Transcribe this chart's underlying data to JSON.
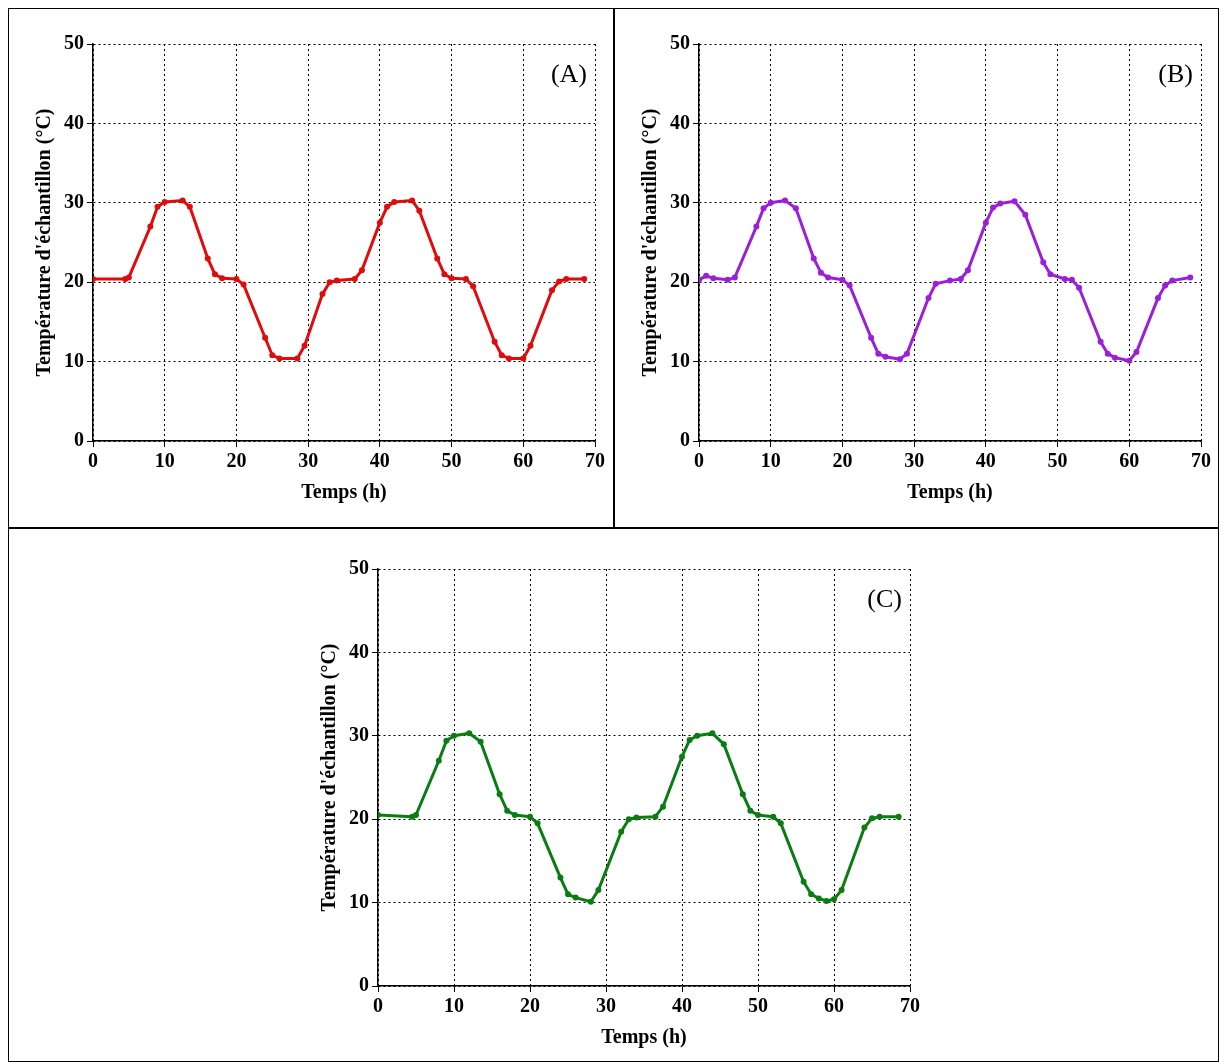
{
  "chart_data": [
    {
      "type": "line",
      "xlabel": "Temps (h)",
      "ylabel": "Température d'échantillon (°C)",
      "annotations": [
        "(A)"
      ],
      "xlim": [
        0,
        70
      ],
      "xticks": [
        0,
        10,
        20,
        30,
        40,
        50,
        60,
        70
      ],
      "ylim": [
        0,
        50
      ],
      "yticks": [
        0,
        10,
        20,
        30,
        40,
        50
      ],
      "grid": true,
      "legend": false,
      "marker": "circle",
      "x": [
        0,
        4.5,
        5,
        8,
        9,
        10,
        12.5,
        13.5,
        16,
        17,
        18,
        20,
        21,
        24,
        25,
        26,
        28.5,
        29.5,
        32,
        33,
        34,
        36.5,
        37.5,
        40,
        41,
        42,
        44.5,
        45.5,
        48,
        49,
        50,
        52,
        53,
        56,
        57,
        58,
        60,
        61,
        64,
        65,
        66,
        68.5
      ],
      "series": [
        {
          "color": "#e00c0c",
          "values": [
            20.4,
            20.4,
            20.6,
            27,
            29.5,
            30.1,
            30.3,
            29.5,
            23,
            21,
            20.5,
            20.4,
            19.7,
            13,
            10.8,
            10.4,
            10.4,
            12,
            18.5,
            20,
            20.2,
            20.4,
            21.5,
            27.5,
            29.5,
            30.1,
            30.3,
            29,
            23,
            21,
            20.5,
            20.4,
            19.5,
            12.5,
            10.8,
            10.4,
            10.4,
            12,
            19,
            20.1,
            20.4,
            20.4
          ]
        }
      ]
    },
    {
      "type": "line",
      "xlabel": "Temps (h)",
      "ylabel": "Température d'échantillon (°C)",
      "annotations": [
        "(B)"
      ],
      "xlim": [
        0,
        70
      ],
      "xticks": [
        0,
        10,
        20,
        30,
        40,
        50,
        60,
        70
      ],
      "ylim": [
        0,
        50
      ],
      "yticks": [
        0,
        10,
        20,
        30,
        40,
        50
      ],
      "grid": true,
      "legend": false,
      "marker": "circle",
      "x": [
        0,
        1,
        2,
        4,
        5,
        8,
        9,
        10,
        12,
        13.5,
        16,
        17,
        18,
        20,
        21,
        24,
        25,
        26,
        28,
        29,
        32,
        33,
        35,
        36.5,
        37.5,
        40,
        41,
        42,
        44,
        45.5,
        48,
        49,
        51,
        52,
        53,
        56,
        57,
        58,
        60,
        61,
        64,
        65,
        66,
        68.5
      ],
      "series": [
        {
          "color": "#9b1fd8",
          "values": [
            20.3,
            20.8,
            20.5,
            20.3,
            20.6,
            27,
            29.3,
            30,
            30.3,
            29.3,
            23,
            21.2,
            20.6,
            20.3,
            19.6,
            13,
            11,
            10.6,
            10.3,
            11,
            18,
            19.8,
            20.2,
            20.4,
            21.5,
            27.5,
            29.4,
            29.9,
            30.2,
            28.5,
            22.5,
            21,
            20.4,
            20.3,
            19.3,
            12.5,
            11,
            10.5,
            10.1,
            11.2,
            18,
            19.6,
            20.2,
            20.6
          ]
        }
      ]
    },
    {
      "type": "line",
      "xlabel": "Temps (h)",
      "ylabel": "Température d'échantillon (°C)",
      "annotations": [
        "(C)"
      ],
      "xlim": [
        0,
        70
      ],
      "xticks": [
        0,
        10,
        20,
        30,
        40,
        50,
        60,
        70
      ],
      "ylim": [
        0,
        50
      ],
      "yticks": [
        0,
        10,
        20,
        30,
        40,
        50
      ],
      "grid": true,
      "legend": false,
      "marker": "circle",
      "x": [
        0,
        4.5,
        5,
        8,
        9,
        10,
        12,
        13.5,
        16,
        17,
        18,
        20,
        21,
        24,
        25,
        26,
        28,
        29,
        32,
        33,
        34,
        36.5,
        37.5,
        40,
        41,
        42,
        44,
        45.5,
        48,
        49,
        50,
        52,
        53,
        56,
        57,
        58,
        59,
        60,
        61,
        64,
        65,
        66,
        68.5
      ],
      "series": [
        {
          "color": "#0a7d12",
          "values": [
            20.5,
            20.3,
            20.5,
            27,
            29.4,
            30,
            30.3,
            29.3,
            23,
            21,
            20.5,
            20.3,
            19.5,
            13,
            11,
            10.6,
            10.1,
            11.5,
            18.5,
            20,
            20.2,
            20.3,
            21.5,
            27.5,
            29.5,
            30,
            30.3,
            29,
            23,
            21,
            20.5,
            20.3,
            19.5,
            12.5,
            11,
            10.5,
            10.2,
            10.4,
            11.5,
            19,
            20.1,
            20.3,
            20.3
          ]
        }
      ]
    }
  ]
}
